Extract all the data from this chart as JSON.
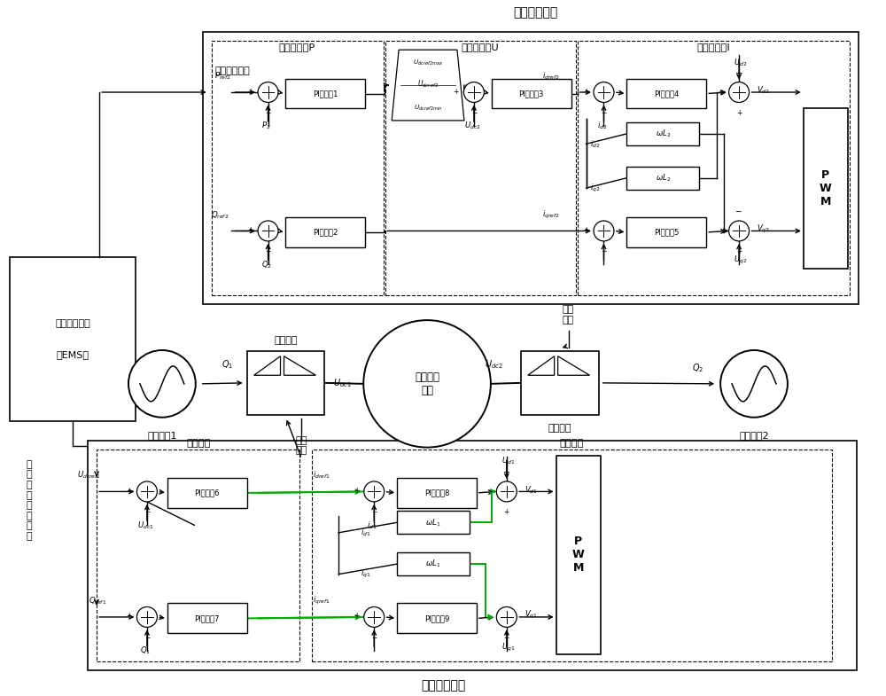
{
  "fig_width": 10.0,
  "fig_height": 7.85,
  "bg_color": "#ffffff",
  "line_color": "#000000",
  "green_color": "#00aa00",
  "dashed_color": "#555555",
  "top_title": "从站控制方式",
  "bottom_title": "主站控制方式",
  "ems_label1": "能量管理系统",
  "ems_label2": "（EMS）",
  "power_cmd": "功率优化指令",
  "voltage_cmd": "电\n压\n和\n无\n功\n率\n指\n令",
  "slave_sections": [
    "功率环控制P",
    "电压环控制U",
    "电流环控制I"
  ],
  "master_sections": [
    "外环控制",
    "内环控制"
  ],
  "pi_labels": [
    "PI调节器1",
    "PI调节器2",
    "PI调节器3",
    "PI调节器4",
    "PI调节器5",
    "PI调节器6",
    "PI调节器7",
    "PI调节器8",
    "PI调节器9"
  ],
  "ac1_label": "交流系统1",
  "ac2_label": "交流系统2",
  "dc_label": "直流配电\n网络",
  "master_conv": "主换流站",
  "slave_conv": "从换流站",
  "pulse1": "脉冲\n信号",
  "pulse2": "脉冲\n信号",
  "pwm_label": "P\nW\nM"
}
